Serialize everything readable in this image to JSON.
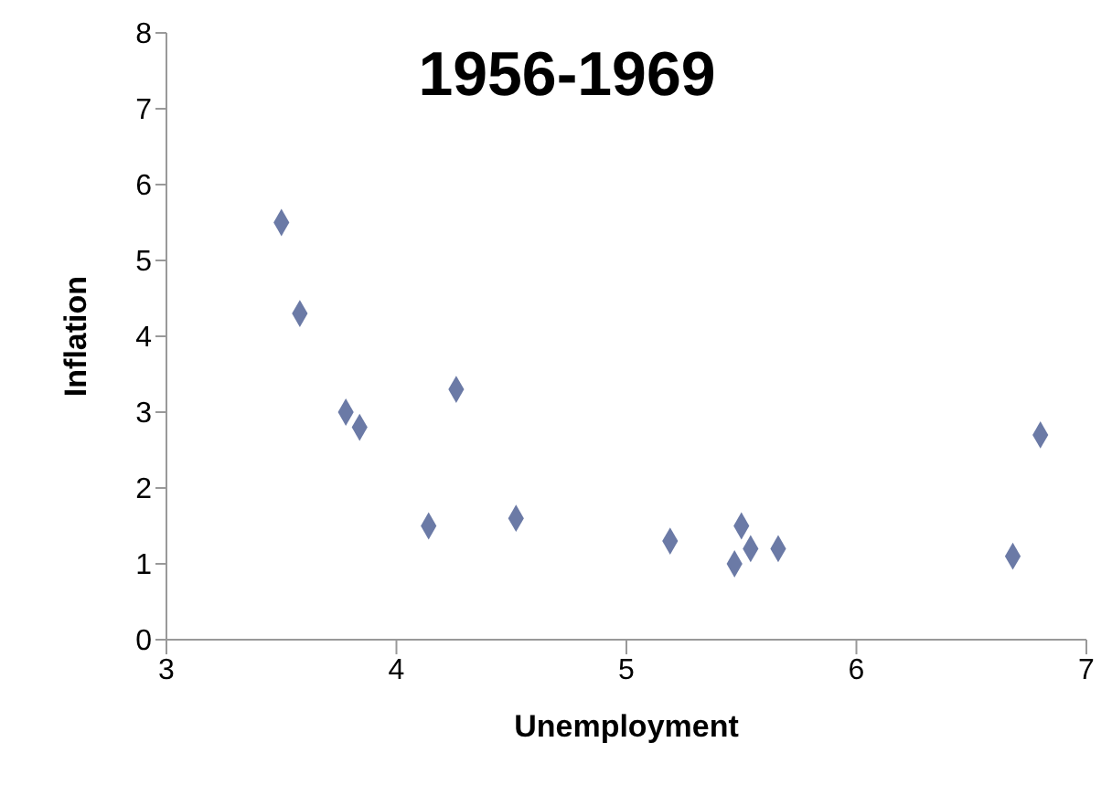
{
  "chart_data": {
    "type": "scatter",
    "title": "1956-1969",
    "xlabel": "Unemployment",
    "ylabel": "Inflation",
    "x": [
      3.5,
      3.58,
      3.78,
      3.84,
      4.26,
      4.14,
      4.52,
      5.19,
      5.5,
      5.54,
      5.47,
      5.66,
      6.68,
      6.8
    ],
    "values": [
      5.5,
      4.3,
      3.0,
      2.8,
      3.3,
      1.5,
      1.6,
      1.3,
      1.5,
      1.2,
      1.0,
      1.2,
      1.1,
      2.7
    ],
    "color": "#6b7aa6",
    "marker": "diamond",
    "xlim": [
      3,
      7
    ],
    "xticks": [
      3,
      4,
      5,
      6,
      7
    ],
    "ylim": [
      0,
      8
    ],
    "yticks": [
      0,
      1,
      2,
      3,
      4,
      5,
      6,
      7,
      8
    ],
    "grid": false,
    "legend": false
  }
}
